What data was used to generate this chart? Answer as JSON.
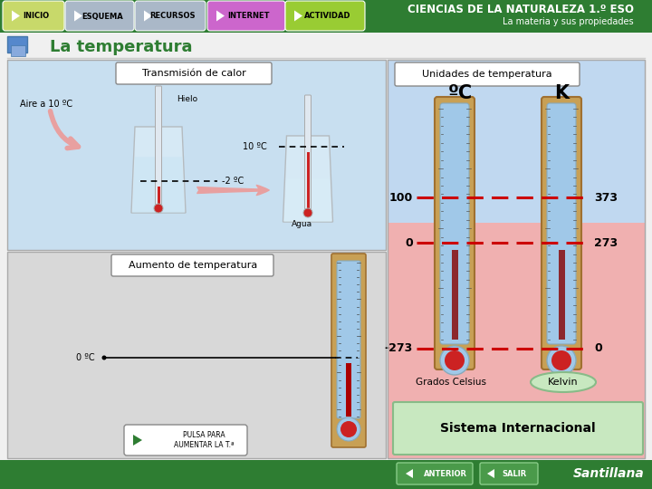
{
  "title": "CIENCIAS DE LA NATURALEZA 1.º ESO",
  "subtitle": "La materia y sus propiedades",
  "page_title": "La temperatura",
  "nav_buttons": [
    "INICIO",
    "ESQUEMA",
    "RECURSOS",
    "INTERNET",
    "ACTIVIDAD"
  ],
  "nav_colors": [
    "#c8d96a",
    "#aab8c8",
    "#aab8c8",
    "#cc66cc",
    "#99cc33"
  ],
  "header_bg": "#2e7d32",
  "footer_bg": "#2e7d32",
  "main_bg": "#f0f0f0",
  "left_top_bg": "#c8dff0",
  "left_bottom_bg": "#d8d8d8",
  "right_bg": "#f0b0b0",
  "right_bg2": "#c8dff0",
  "box_fill": "#ffffff",
  "box_edge": "#888888",
  "box1_title": "Transmisión de calor",
  "box2_title": "Aumento de temperatura",
  "box3_title": "Unidades de temperatura",
  "label_aire": "Aire a 10 ºC",
  "label_hielo": "Hielo",
  "label_agua": "Agua",
  "label_temp_2": "-2 ºC",
  "label_temp_10": "10 ºC",
  "label_temp_0": "0 ºC",
  "label_celsius": "ºC",
  "label_kelvin_sym": "K",
  "label_100": "100",
  "label_0_left": "0",
  "label_n273": "-273",
  "label_373": "373",
  "label_273": "273",
  "label_k0": "0",
  "label_grados_celsius": "Grados Celsius",
  "label_kelvin_btn": "Kelvin",
  "label_sistema": "Sistema Internacional",
  "label_pulsa": "PULSA PARA\nAUMENTAR LA T.ª",
  "label_anterior": "ANTERIOR",
  "label_salir": "SALIR",
  "label_santillana": "Santillana",
  "therm_board": "#c8a055",
  "therm_tube": "#a0c8e8",
  "therm_merc": "#cc2222",
  "therm_bulb_outer": "#a0c8e8",
  "therm_bulb_inner": "#cc3333",
  "dashed_color": "#cc0000",
  "sistema_bg": "#c8e8c0",
  "sistema_edge": "#88bb88",
  "kelvin_bg": "#c8e8c0",
  "kelvin_edge": "#88bb88",
  "arrow_color": "#e8a0a0",
  "page_icon_color": "#5588cc"
}
